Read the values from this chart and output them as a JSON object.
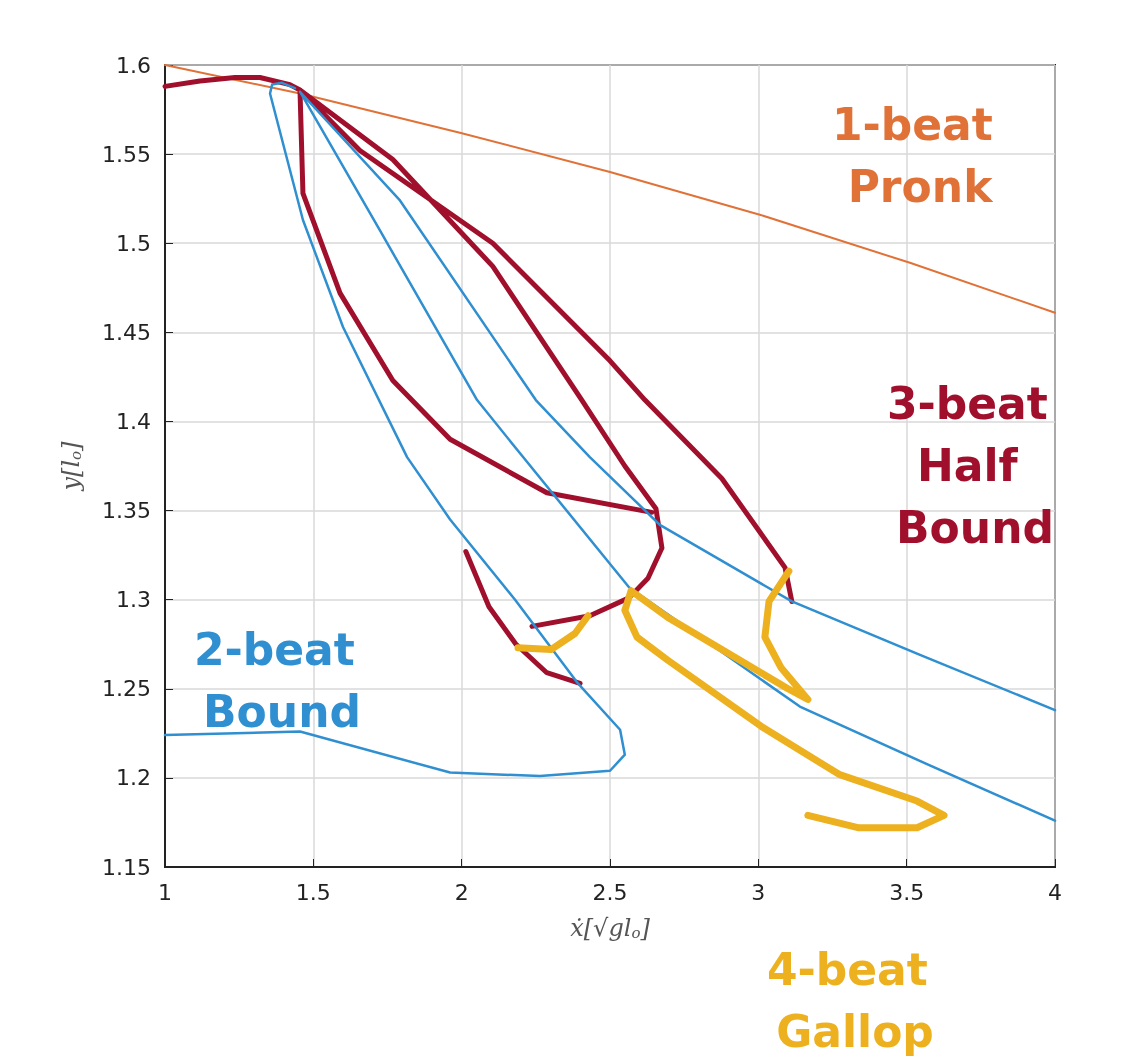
{
  "chart_data": {
    "type": "line",
    "xlabel": "ẋ[√gl$_{o}$]",
    "ylabel": "y[l$_{o}$]",
    "xlim": [
      1,
      4
    ],
    "xticks": [
      1,
      1.5,
      2,
      2.5,
      3,
      3.5,
      4
    ],
    "ylim": [
      1.15,
      1.6
    ],
    "yticks": [
      1.15,
      1.2,
      1.25,
      1.3,
      1.35,
      1.4,
      1.45,
      1.5,
      1.55,
      1.6
    ],
    "grid": true,
    "legend": false,
    "marker": "none",
    "line_style": "solid",
    "series": [
      {
        "name": "1-beat Pronk",
        "color": "#e07238",
        "x": [
          1.0,
          1.455,
          1.994,
          2.5,
          3.005,
          3.511,
          4.0
        ],
        "values": [
          1.6,
          1.584,
          1.562,
          1.54,
          1.516,
          1.489,
          1.461
        ]
      },
      {
        "name": "3-beat Half Bound",
        "color": "#a0102c",
        "x": [
          1.0,
          1.118,
          1.236,
          1.32,
          1.421,
          1.455,
          null,
          1.455,
          1.465,
          1.59,
          1.768,
          1.961,
          2.287,
          2.641,
          null,
          1.455,
          1.768,
          2.105,
          2.405,
          2.55,
          2.655,
          2.675,
          2.628,
          2.564,
          2.432,
          2.237,
          null,
          1.455,
          1.657,
          2.105,
          2.5,
          2.618,
          2.877,
          3.09,
          3.113,
          null,
          2.014,
          2.092,
          2.183,
          2.287,
          2.399
        ],
        "values": [
          1.588,
          1.591,
          1.593,
          1.593,
          1.589,
          1.586,
          null,
          1.586,
          1.528,
          1.472,
          1.423,
          1.39,
          1.36,
          1.349,
          null,
          1.586,
          1.547,
          1.487,
          1.412,
          1.375,
          1.351,
          1.329,
          1.312,
          1.301,
          1.291,
          1.285,
          null,
          1.586,
          1.552,
          1.5,
          1.434,
          1.412,
          1.368,
          1.318,
          1.299,
          null,
          1.327,
          1.296,
          1.275,
          1.259,
          1.253
        ]
      },
      {
        "name": "2-beat Bound",
        "color": "#2f8fd0",
        "x": [
          1.0,
          1.455,
          1.961,
          2.264,
          2.5,
          2.55,
          2.534,
          2.392,
          2.18,
          1.961,
          1.816,
          1.6,
          1.465,
          1.354,
          1.361,
          1.394,
          1.438,
          null,
          1.455,
          1.725,
          2.052,
          2.207,
          2.564,
          3.14,
          3.578,
          4.0,
          null,
          1.455,
          1.792,
          2.25,
          2.432,
          2.668,
          3.113,
          3.545,
          4.0
        ],
        "values": [
          1.224,
          1.226,
          1.203,
          1.201,
          1.204,
          1.213,
          1.227,
          1.253,
          1.3,
          1.345,
          1.38,
          1.453,
          1.513,
          1.584,
          1.589,
          1.59,
          1.587,
          null,
          1.585,
          1.507,
          1.412,
          1.38,
          1.307,
          1.24,
          1.207,
          1.176,
          null,
          1.585,
          1.524,
          1.412,
          1.38,
          1.342,
          1.299,
          1.269,
          1.238
        ]
      },
      {
        "name": "4-beat Gallop",
        "color": "#edb120",
        "x": [
          2.19,
          2.301,
          2.382,
          2.426,
          null,
          3.103,
          3.036,
          3.022,
          3.076,
          3.167,
          3.1,
          2.877,
          2.695,
          2.571,
          2.55,
          2.591,
          2.695,
          3.009,
          3.272,
          3.535,
          3.626,
          3.535,
          3.339,
          3.167
        ],
        "values": [
          1.273,
          1.272,
          1.281,
          1.291,
          null,
          1.316,
          1.299,
          1.279,
          1.262,
          1.244,
          1.25,
          1.272,
          1.29,
          1.305,
          1.294,
          1.279,
          1.266,
          1.229,
          1.202,
          1.187,
          1.179,
          1.172,
          1.172,
          1.179
        ]
      }
    ]
  }
}
